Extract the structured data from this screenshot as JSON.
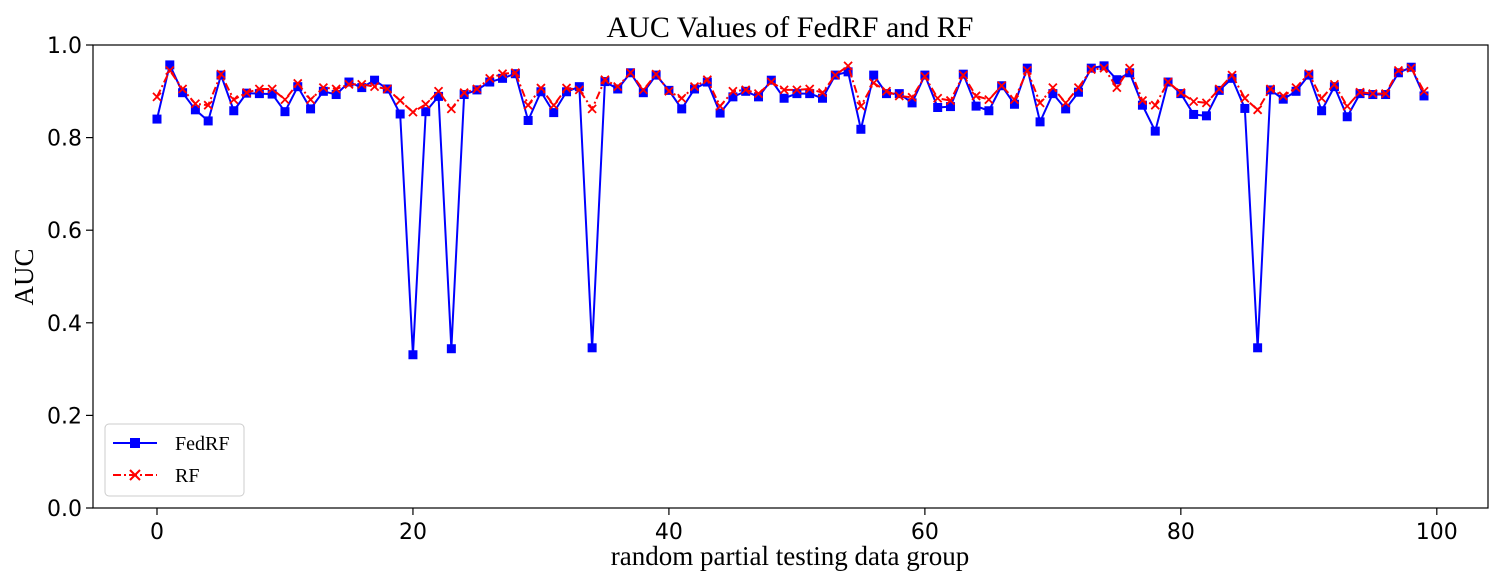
{
  "chart_data": {
    "type": "line",
    "title": "AUC Values of FedRF and RF",
    "xlabel": "random partial testing data group",
    "ylabel": "AUC",
    "xlim": [
      -5,
      104
    ],
    "ylim": [
      0.0,
      1.0
    ],
    "xticks": [
      0,
      20,
      40,
      60,
      80,
      100
    ],
    "yticks": [
      0.0,
      0.2,
      0.4,
      0.6,
      0.8,
      1.0
    ],
    "xtick_labels": [
      "0",
      "20",
      "40",
      "60",
      "80",
      "100"
    ],
    "ytick_labels": [
      "0.0",
      "0.2",
      "0.4",
      "0.6",
      "0.8",
      "1.0"
    ],
    "grid": false,
    "legend_position": "lower-left",
    "series": [
      {
        "name": "FedRF",
        "color": "#0000ff",
        "marker": "square",
        "line_style": "solid",
        "x_start": 0,
        "values": [
          0.84,
          0.957,
          0.897,
          0.86,
          0.836,
          0.935,
          0.858,
          0.896,
          0.895,
          0.894,
          0.856,
          0.91,
          0.862,
          0.9,
          0.893,
          0.92,
          0.908,
          0.924,
          0.905,
          0.851,
          0.331,
          0.856,
          0.889,
          0.344,
          0.893,
          0.903,
          0.92,
          0.928,
          0.938,
          0.837,
          0.899,
          0.854,
          0.899,
          0.91,
          0.346,
          0.921,
          0.905,
          0.94,
          0.897,
          0.935,
          0.902,
          0.862,
          0.905,
          0.92,
          0.853,
          0.888,
          0.9,
          0.888,
          0.924,
          0.885,
          0.895,
          0.895,
          0.885,
          0.935,
          0.942,
          0.818,
          0.935,
          0.895,
          0.895,
          0.875,
          0.935,
          0.865,
          0.867,
          0.937,
          0.868,
          0.858,
          0.912,
          0.872,
          0.95,
          0.834,
          0.895,
          0.862,
          0.898,
          0.95,
          0.955,
          0.925,
          0.94,
          0.87,
          0.814,
          0.92,
          0.895,
          0.85,
          0.847,
          0.902,
          0.928,
          0.863,
          0.346,
          0.903,
          0.883,
          0.9,
          0.935,
          0.858,
          0.91,
          0.845,
          0.895,
          0.893,
          0.893,
          0.94,
          0.952,
          0.89
        ]
      },
      {
        "name": "RF",
        "color": "#ff0000",
        "marker": "x",
        "line_style": "dashdot",
        "x_start": 0,
        "values": [
          0.888,
          0.945,
          0.905,
          0.873,
          0.87,
          0.937,
          0.882,
          0.897,
          0.905,
          0.905,
          0.882,
          0.917,
          0.882,
          0.908,
          0.905,
          0.915,
          0.915,
          0.91,
          0.905,
          0.88,
          0.855,
          0.872,
          0.9,
          0.862,
          0.897,
          0.905,
          0.928,
          0.938,
          0.94,
          0.87,
          0.907,
          0.87,
          0.907,
          0.903,
          0.862,
          0.925,
          0.91,
          0.94,
          0.903,
          0.937,
          0.9,
          0.885,
          0.91,
          0.925,
          0.868,
          0.9,
          0.903,
          0.895,
          0.92,
          0.903,
          0.903,
          0.905,
          0.897,
          0.935,
          0.955,
          0.868,
          0.918,
          0.9,
          0.89,
          0.887,
          0.932,
          0.885,
          0.88,
          0.935,
          0.89,
          0.882,
          0.912,
          0.882,
          0.945,
          0.875,
          0.908,
          0.875,
          0.908,
          0.947,
          0.95,
          0.908,
          0.95,
          0.88,
          0.87,
          0.92,
          0.897,
          0.878,
          0.875,
          0.905,
          0.935,
          0.885,
          0.86,
          0.905,
          0.89,
          0.908,
          0.938,
          0.885,
          0.915,
          0.868,
          0.898,
          0.895,
          0.895,
          0.945,
          0.95,
          0.9
        ]
      }
    ]
  }
}
